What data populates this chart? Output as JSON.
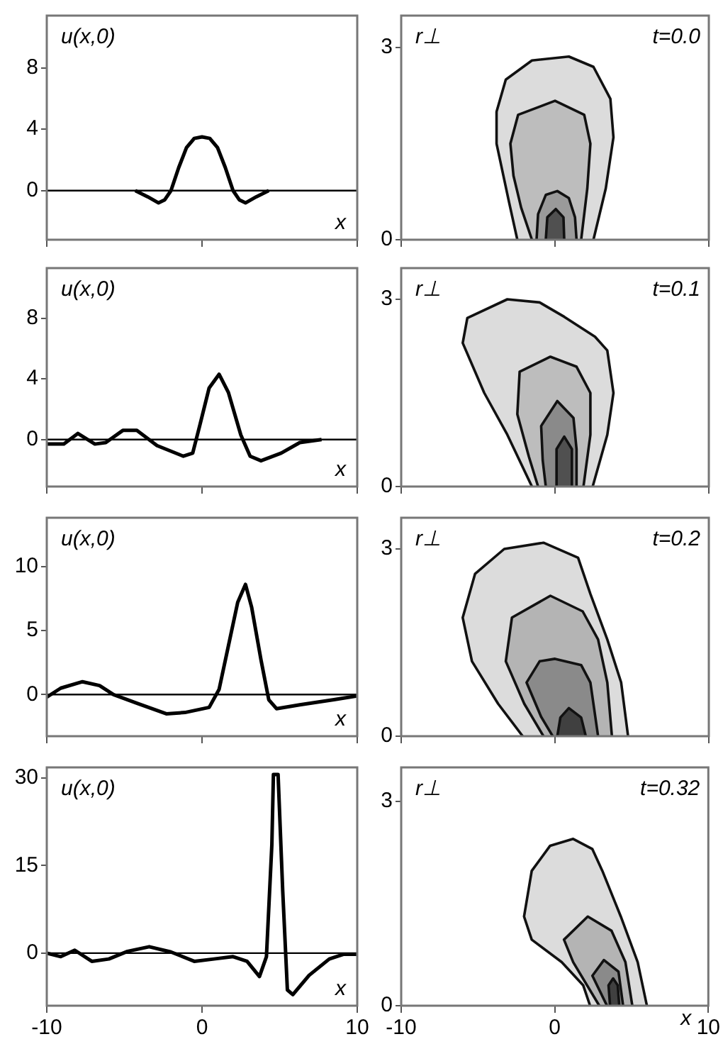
{
  "chart_data": [
    {
      "type": "line",
      "ylabel": "u(x,0)",
      "xlabel": "x",
      "xlim": [
        -10,
        10
      ],
      "xticks": [
        -10,
        0,
        10
      ],
      "ylim": [
        -3.2,
        11.4
      ],
      "yticks": [
        0,
        4,
        8
      ],
      "tick_labels": "y",
      "ref_lines": [
        {
          "axis": "y",
          "value": 0,
          "color": "#000000"
        }
      ],
      "series": [
        {
          "color": "#000000",
          "x": [
            -4.3,
            -3.5,
            -2.8,
            -2.4,
            -2,
            -1.5,
            -1,
            -0.5,
            0,
            0.5,
            1,
            1.5,
            2,
            2.4,
            2.8,
            3.5,
            4.3
          ],
          "values": [
            0,
            -0.4,
            -0.8,
            -0.6,
            0,
            1.5,
            2.8,
            3.4,
            3.5,
            3.4,
            2.8,
            1.5,
            0,
            -0.6,
            -0.8,
            -0.4,
            0
          ]
        }
      ]
    },
    {
      "type": "area",
      "ylabel": "r⊥",
      "title": "t=0.0",
      "xlim": [
        -10,
        10
      ],
      "xticks": [
        -10,
        0,
        10
      ],
      "ylim": [
        0,
        3.5
      ],
      "yticks": [
        0,
        3
      ],
      "tick_labels": "y",
      "series": [
        {
          "color": "#dcdcdc",
          "x": [
            -2.45,
            -3.0,
            -3.8,
            -3.8,
            -3.2,
            -1.5,
            0.9,
            2.5,
            3.6,
            3.8,
            3.3,
            2.5
          ],
          "values": [
            0,
            0.6,
            1.5,
            2.0,
            2.5,
            2.8,
            2.86,
            2.7,
            2.2,
            1.6,
            0.8,
            0
          ]
        },
        {
          "color": "#bdbdbd",
          "x": [
            -1.5,
            -2.2,
            -2.7,
            -2.9,
            -2.4,
            0,
            1.9,
            2.3,
            2.1,
            1.7
          ],
          "values": [
            0,
            0.5,
            1.0,
            1.5,
            1.95,
            2.17,
            1.95,
            1.5,
            0.8,
            0
          ]
        },
        {
          "color": "#9a9a9a",
          "x": [
            -1.2,
            -1.1,
            -0.6,
            0.15,
            0.9,
            1.3,
            1.4
          ],
          "values": [
            0,
            0.4,
            0.7,
            0.76,
            0.65,
            0.35,
            0
          ]
        },
        {
          "color": "#505050",
          "x": [
            -0.6,
            -0.5,
            0.05,
            0.55,
            0.6
          ],
          "values": [
            0,
            0.35,
            0.48,
            0.35,
            0
          ]
        }
      ]
    },
    {
      "type": "line",
      "ylabel": "u(x,0)",
      "xlabel": "x",
      "xlim": [
        -10,
        10
      ],
      "xticks": [
        -10,
        0,
        10
      ],
      "ylim": [
        -3.1,
        11.3
      ],
      "yticks": [
        0,
        4,
        8
      ],
      "tick_labels": "y",
      "ref_lines": [
        {
          "axis": "y",
          "value": 0,
          "color": "#000000"
        }
      ],
      "series": [
        {
          "color": "#000000",
          "x": [
            -10,
            -8.9,
            -8.0,
            -6.9,
            -6.2,
            -5.1,
            -4.2,
            -2.9,
            -1.2,
            -0.6,
            -0.15,
            0.46,
            1.1,
            1.7,
            2.5,
            3.1,
            3.8,
            5.1,
            6.3,
            7.7
          ],
          "values": [
            -0.3,
            -0.3,
            0.4,
            -0.3,
            -0.2,
            0.6,
            0.6,
            -0.4,
            -1.1,
            -0.9,
            0.9,
            3.4,
            4.3,
            3.1,
            0.3,
            -1.1,
            -1.4,
            -0.9,
            -0.2,
            0
          ]
        }
      ]
    },
    {
      "type": "area",
      "ylabel": "r⊥",
      "title": "t=0.1",
      "xlim": [
        -10,
        10
      ],
      "xticks": [
        -10,
        0,
        10
      ],
      "ylim": [
        0,
        3.5
      ],
      "yticks": [
        0,
        3
      ],
      "tick_labels": "y",
      "series": [
        {
          "color": "#dcdcdc",
          "x": [
            -1.5,
            -3.1,
            -4.6,
            -6.0,
            -5.7,
            -3.1,
            -1.0,
            0.6,
            2.6,
            3.4,
            3.8,
            3.4,
            2.45
          ],
          "values": [
            0,
            0.83,
            1.5,
            2.3,
            2.7,
            3.0,
            2.95,
            2.72,
            2.4,
            2.18,
            1.5,
            0.83,
            0
          ]
        },
        {
          "color": "#bdbdbd",
          "x": [
            -1.1,
            -1.7,
            -2.45,
            -2.3,
            -0.3,
            1.4,
            2.3,
            2.3,
            1.85
          ],
          "values": [
            0,
            0.48,
            1.16,
            1.84,
            2.08,
            1.92,
            1.5,
            0.83,
            0
          ]
        },
        {
          "color": "#8a8a8a",
          "x": [
            -0.6,
            -0.8,
            -0.9,
            0.15,
            1.2,
            1.4,
            1.4
          ],
          "values": [
            0,
            0.42,
            0.97,
            1.37,
            1.1,
            0.6,
            0
          ]
        },
        {
          "color": "#505050",
          "x": [
            0.05,
            0.1,
            0.6,
            1.1,
            1.1
          ],
          "values": [
            0,
            0.6,
            0.8,
            0.6,
            0
          ]
        }
      ]
    },
    {
      "type": "line",
      "ylabel": "u(x,0)",
      "xlabel": "x",
      "xlim": [
        -10,
        10
      ],
      "xticks": [
        -10,
        0,
        10
      ],
      "ylim": [
        -3.25,
        13.8
      ],
      "yticks": [
        0,
        5,
        10
      ],
      "tick_labels": "y",
      "ref_lines": [
        {
          "axis": "y",
          "value": 0,
          "color": "#000000"
        }
      ],
      "series": [
        {
          "color": "#000000",
          "x": [
            -10,
            -9.1,
            -7.7,
            -6.6,
            -5.7,
            -4.15,
            -2.3,
            -1.1,
            0.46,
            1.1,
            1.7,
            2.3,
            2.8,
            3.2,
            3.8,
            4.3,
            4.8,
            6.3,
            8.5,
            10
          ],
          "values": [
            -0.2,
            0.5,
            1.0,
            0.7,
            0,
            -0.7,
            -1.5,
            -1.4,
            -1.0,
            0.4,
            3.8,
            7.2,
            8.6,
            6.8,
            2.7,
            -0.4,
            -1.1,
            -0.8,
            -0.4,
            -0.1
          ]
        }
      ]
    },
    {
      "type": "area",
      "ylabel": "r⊥",
      "title": "t=0.2",
      "xlim": [
        -10,
        10
      ],
      "xticks": [
        -10,
        0,
        10
      ],
      "ylim": [
        0,
        3.5
      ],
      "yticks": [
        0,
        3
      ],
      "tick_labels": "y",
      "series": [
        {
          "color": "#dcdcdc",
          "x": [
            -2.1,
            -3.7,
            -5.4,
            -6.0,
            -5.2,
            -3.3,
            -0.75,
            1.5,
            2.3,
            3.4,
            4.3,
            4.75
          ],
          "values": [
            0,
            0.52,
            1.2,
            1.9,
            2.6,
            3.0,
            3.1,
            2.86,
            2.28,
            1.55,
            0.86,
            0
          ]
        },
        {
          "color": "#b4b4b4",
          "x": [
            -0.75,
            -2.0,
            -3.2,
            -2.8,
            -0.3,
            1.8,
            2.8,
            3.4,
            3.7
          ],
          "values": [
            0,
            0.52,
            1.2,
            1.9,
            2.25,
            2.0,
            1.55,
            0.86,
            0
          ]
        },
        {
          "color": "#8a8a8a",
          "x": [
            -0.15,
            -0.9,
            -1.85,
            -1.0,
            0,
            1.7,
            2.3,
            2.8
          ],
          "values": [
            0,
            0.31,
            0.86,
            1.2,
            1.24,
            1.14,
            0.86,
            0
          ]
        },
        {
          "color": "#404040",
          "x": [
            0.15,
            0.35,
            0.9,
            1.7,
            2.0
          ],
          "values": [
            0,
            0.3,
            0.45,
            0.3,
            0
          ]
        }
      ]
    },
    {
      "type": "line",
      "ylabel": "u(x,0)",
      "xlabel": "x",
      "xlim": [
        -10,
        10
      ],
      "xticks": [
        -10,
        0,
        10
      ],
      "ylim": [
        -9,
        31.8
      ],
      "yticks": [
        0,
        15,
        30
      ],
      "ref_lines": [
        {
          "axis": "y",
          "value": 0,
          "color": "#000000"
        }
      ],
      "series": [
        {
          "color": "#000000",
          "x": [
            -10,
            -9.1,
            -8.2,
            -7.1,
            -6.0,
            -4.8,
            -3.4,
            -2.0,
            -0.5,
            0.77,
            2.0,
            2.9,
            3.7,
            4.15,
            4.5,
            4.6,
            4.9,
            5.2,
            5.5,
            5.85,
            6.9,
            8.2,
            9.1,
            10
          ],
          "values": [
            0,
            -0.6,
            0.5,
            -1.4,
            -1,
            0.3,
            1.1,
            0.2,
            -1.4,
            -1,
            -0.6,
            -1.4,
            -4,
            -0.6,
            18.6,
            30.6,
            30.6,
            10.6,
            -6.3,
            -7.1,
            -3.8,
            -1,
            -0.2,
            -0.2
          ]
        }
      ]
    },
    {
      "type": "area",
      "ylabel": "r⊥",
      "title": "t=0.32",
      "xlabel": "x",
      "xlim": [
        -10,
        10
      ],
      "xticks": [
        -10,
        0,
        10
      ],
      "ylim": [
        0,
        3.5
      ],
      "yticks": [
        0,
        3
      ],
      "series": [
        {
          "color": "#dcdcdc",
          "x": [
            2.3,
            1.85,
            0.45,
            -1.5,
            -2.0,
            -1.5,
            -0.3,
            1.2,
            2.45,
            3.1,
            4.3,
            5.4,
            6.0
          ],
          "values": [
            0,
            0.3,
            0.64,
            0.97,
            1.31,
            1.98,
            2.35,
            2.45,
            2.3,
            1.98,
            1.31,
            0.64,
            0
          ]
        },
        {
          "color": "#b4b4b4",
          "x": [
            2.9,
            1.2,
            0.6,
            2.15,
            3.7,
            4.6,
            5.05
          ],
          "values": [
            0,
            0.64,
            0.97,
            1.31,
            1.1,
            0.64,
            0
          ]
        },
        {
          "color": "#8a8a8a",
          "x": [
            3.4,
            2.45,
            3.2,
            4.15,
            4.45
          ],
          "values": [
            0,
            0.44,
            0.67,
            0.5,
            0
          ]
        },
        {
          "color": "#404040",
          "x": [
            3.6,
            3.5,
            3.8,
            4.1,
            4.2
          ],
          "values": [
            0,
            0.3,
            0.4,
            0.3,
            0
          ]
        }
      ]
    }
  ]
}
